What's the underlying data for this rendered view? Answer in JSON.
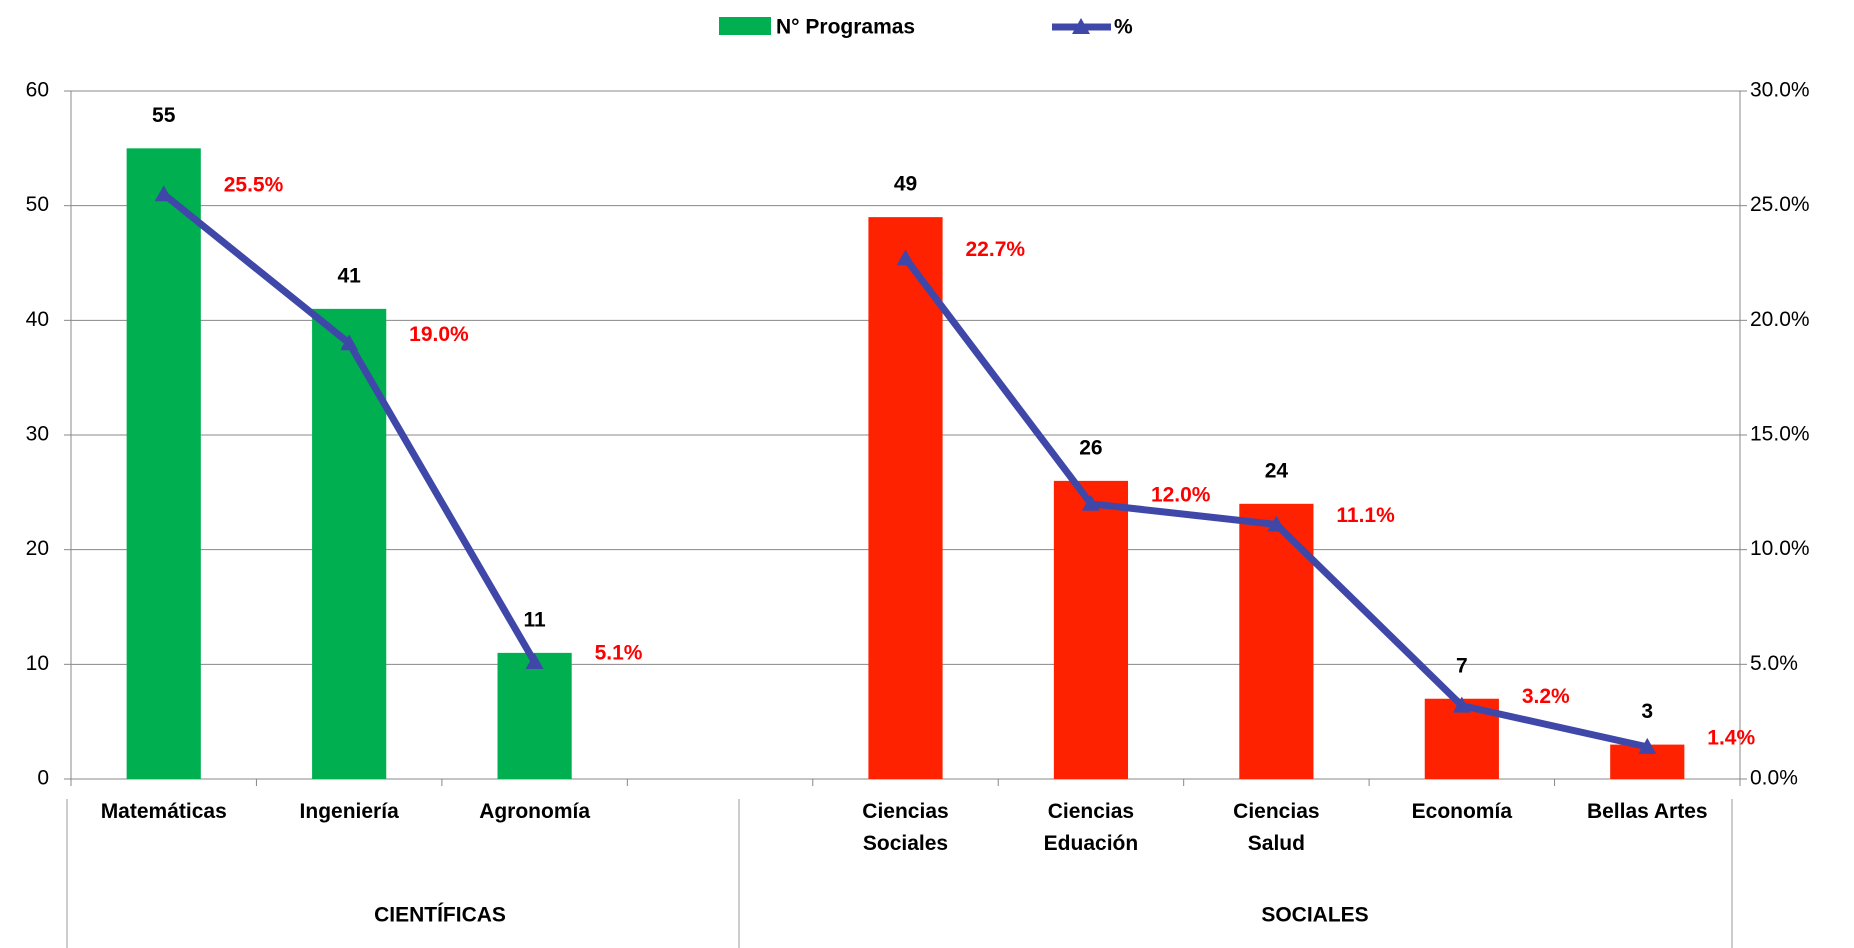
{
  "chart_data": {
    "type": "bar",
    "categories": [
      "Matemáticas",
      "Ingeniería",
      "Agronomía",
      null,
      "Ciencias\nSociales",
      "Ciencias\nEduación",
      "Ciencias\nSalud",
      "Economía",
      "Bellas Artes"
    ],
    "groups": [
      "CIENTÍFICAS",
      "SOCIALES"
    ],
    "series": [
      {
        "name": "N° Programas",
        "type": "bar",
        "color": "#00b050",
        "colors": [
          "#00b050",
          "#00b050",
          "#00b050",
          null,
          "#ff2200",
          "#ff2200",
          "#ff2200",
          "#ff2200",
          "#ff2200"
        ],
        "values": [
          55,
          41,
          11,
          null,
          49,
          26,
          24,
          7,
          3
        ]
      },
      {
        "name": "%",
        "type": "line",
        "axis": "y2",
        "color": "#3f48a8",
        "values": [
          25.5,
          19.0,
          5.1,
          null,
          22.7,
          12.0,
          11.1,
          3.2,
          1.4
        ],
        "value_labels": [
          "25.5%",
          "19.0%",
          "5.1%",
          null,
          "22.7%",
          "12.0%",
          "11.1%",
          "3.2%",
          "1.4%"
        ]
      }
    ],
    "ylim": [
      0,
      60
    ],
    "yticks": [
      0,
      10,
      20,
      30,
      40,
      50,
      60
    ],
    "y2lim": [
      0,
      30
    ],
    "y2ticks": [
      {
        "value": 0,
        "label": "0.0%"
      },
      {
        "value": 5,
        "label": "5.0%"
      },
      {
        "value": 10,
        "label": "10.0%"
      },
      {
        "value": 15,
        "label": "15.0%"
      },
      {
        "value": 20,
        "label": "20.0%"
      },
      {
        "value": 25,
        "label": "25.0%"
      },
      {
        "value": 30,
        "label": "30.0%"
      }
    ],
    "grid": true,
    "legend": "top"
  }
}
